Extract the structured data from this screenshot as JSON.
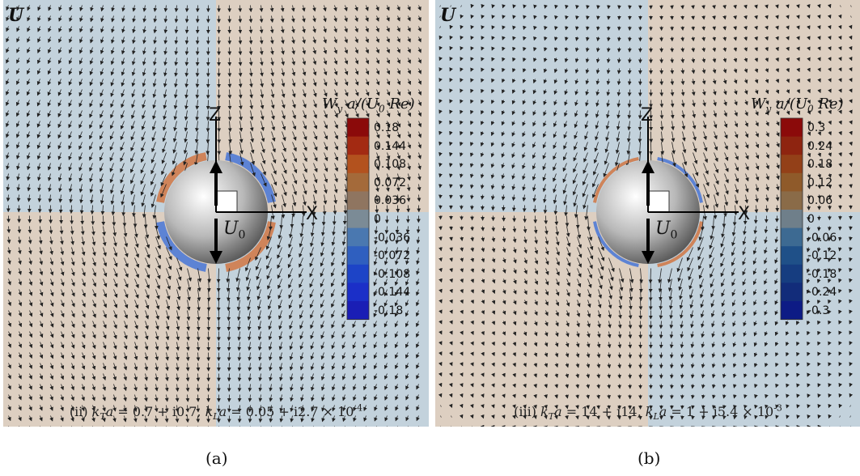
{
  "figure": {
    "panels": [
      {
        "id": "a",
        "vector_label": "U",
        "colorbar": {
          "title": "W_y a/(U_0 Re)",
          "ticks": [
            "0.18",
            "0.144",
            "0.108",
            "0.072",
            "0.036",
            "0",
            "-0.036",
            "-0.072",
            "-0.108",
            "-0.144",
            "-0.18"
          ],
          "colors": [
            "#8b0a0a",
            "#a32a12",
            "#b3521e",
            "#a46a3a",
            "#8f7560",
            "#7b8b96",
            "#4a78b0",
            "#2f5fbf",
            "#1d44c7",
            "#1b2fc8",
            "#1a1eb5"
          ]
        },
        "axes": {
          "x": "X",
          "z": "Z"
        },
        "velocity_label": "U_0",
        "parameters": "(ii)  k_T a = 0.7 + i0.7,  k_L a = 0.05 + i2.7 × 10^-4",
        "sublabel": "(a)",
        "background": {
          "blue": "#c3d2dc",
          "tan": "#ddcfc1"
        }
      },
      {
        "id": "b",
        "vector_label": "U",
        "colorbar": {
          "title": "W_y a/(U_0 Re)",
          "ticks": [
            "0.3",
            "0.24",
            "0.18",
            "0.12",
            "0.06",
            "0",
            "-0.06",
            "-0.12",
            "-0.18",
            "-0.24",
            "-0.3"
          ],
          "colors": [
            "#8b0a0a",
            "#8e2410",
            "#934018",
            "#8f5a2a",
            "#8a6b48",
            "#6f7f8a",
            "#3d6a92",
            "#1f5088",
            "#163d80",
            "#122c7a",
            "#0d1b85"
          ]
        },
        "axes": {
          "x": "X",
          "z": "Z"
        },
        "velocity_label": "U_0",
        "parameters": "(iii)  k_T a = 14 + i14,  k_L a = 1 + i5.4 × 10^-3",
        "sublabel": "(b)",
        "background": {
          "blue": "#c3d2dc",
          "tan": "#ddcfc1"
        }
      }
    ]
  }
}
